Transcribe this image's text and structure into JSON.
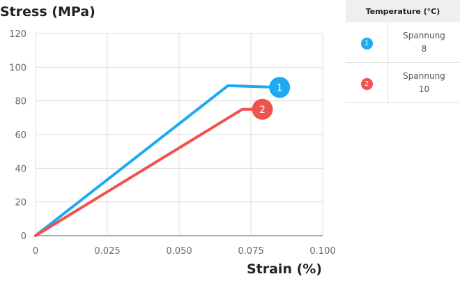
{
  "chart_data": {
    "type": "line",
    "xlabel": "Strain (%)",
    "ylabel": "Stress (MPa)",
    "xlim": [
      0,
      0.1
    ],
    "ylim": [
      0,
      120
    ],
    "x_ticks": [
      "0",
      "0.025",
      "0.050",
      "0.075",
      "0.100"
    ],
    "y_ticks": [
      "0",
      "20",
      "40",
      "60",
      "80",
      "100",
      "120"
    ],
    "grid": true,
    "legend_position": "right",
    "legend_title": "Temperature (°C)",
    "series": [
      {
        "name": "Spannung",
        "temperature": "8",
        "marker": "1",
        "color": "#1eaaf1",
        "x": [
          0,
          0.067,
          0.085
        ],
        "y": [
          0,
          89,
          88
        ]
      },
      {
        "name": "Spannung",
        "temperature": "10",
        "marker": "2",
        "color": "#f0524d",
        "x": [
          0,
          0.072,
          0.079
        ],
        "y": [
          0,
          75,
          75
        ]
      }
    ]
  }
}
